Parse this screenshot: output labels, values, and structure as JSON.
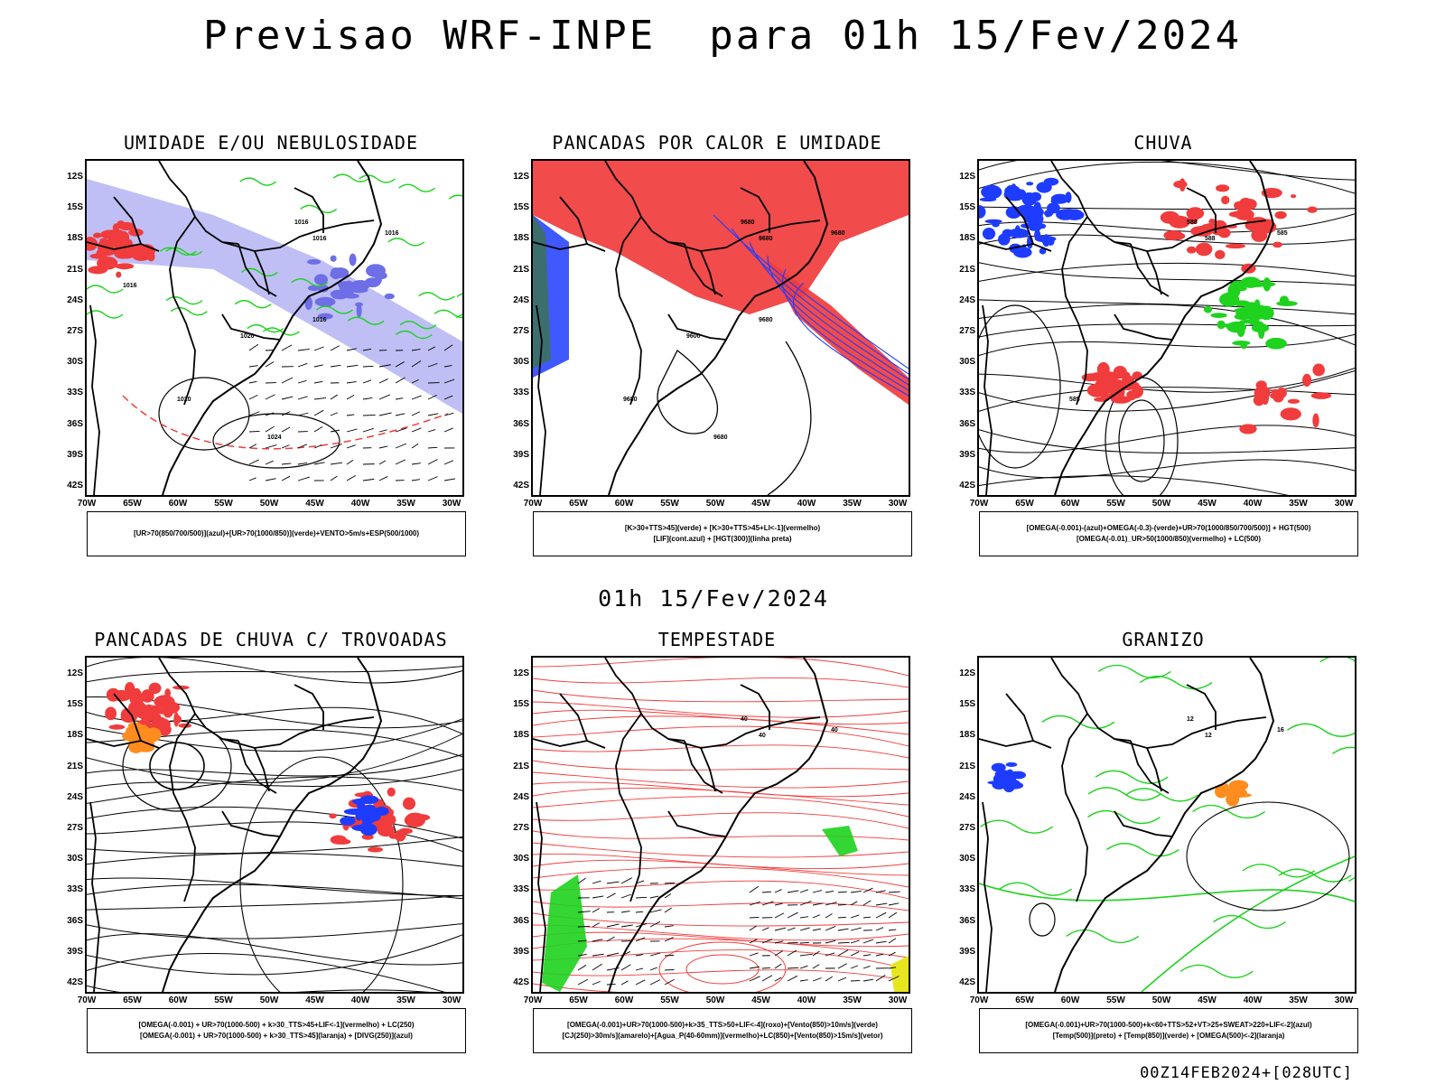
{
  "header": {
    "title": "Previsao WRF-INPE  para 01h 15/Fev/2024",
    "mid_time": "01h 15/Fev/2024",
    "footer": "00Z14FEB2024+[028UTC]"
  },
  "axes": {
    "lat_labels": [
      "12S",
      "15S",
      "18S",
      "21S",
      "24S",
      "27S",
      "30S",
      "33S",
      "36S",
      "39S",
      "42S"
    ],
    "lon_labels": [
      "70W",
      "65W",
      "60W",
      "55W",
      "50W",
      "45W",
      "40W",
      "35W",
      "30W"
    ]
  },
  "colors": {
    "red": "#f03c3c",
    "blue": "#1e3cff",
    "green": "#1ed21e",
    "lavender": "#b4b4f5",
    "dark_teal": "#3c6e6e",
    "orange": "#ff8c1e",
    "black": "#000000"
  },
  "panels": [
    {
      "id": "umidade",
      "title": "UMIDADE E/OU NEBULOSIDADE",
      "legend": [
        "[UR>70(850/700/500)](azul)+[UR>70(1000/850)](verde)+VENTO>5m/s+ESP(500/1000)"
      ],
      "contour_labels": [
        "1016",
        "1016",
        "1016",
        "1020",
        "1024",
        "1016",
        "1020",
        "1016"
      ]
    },
    {
      "id": "pancadas-calor",
      "title": "PANCADAS POR CALOR E UMIDADE",
      "legend": [
        "[K>30+TTS>45](verde) + [K>30+TTS>45+LI<-1](vermelho)",
        "[LIF](cont.azul) + [HGT(300)](linha preta)"
      ],
      "contour_labels": [
        "9680",
        "9680",
        "9680",
        "9680",
        "9680",
        "9680",
        "9600"
      ]
    },
    {
      "id": "chuva",
      "title": "CHUVA",
      "legend": [
        "[OMEGA(-0.001)-(azul)+OMEGA(-0.3)-(verde)+UR>70(1000/850/700/500)] + HGT(500)",
        "[OMEGA(-0.01)_UR>50(1000/850)(vermelho) + LC(500)"
      ],
      "contour_labels": [
        "588",
        "588",
        "585",
        "585"
      ]
    },
    {
      "id": "pancadas-trovoadas",
      "title": "PANCADAS DE CHUVA C/ TROVOADAS",
      "legend": [
        "[OMEGA(-0.001) + UR>70(1000-500) + k>30_TTS>45+LIF<-1](vermelho) + LC(250)",
        "[OMEGA(-0.001) + UR>70(1000-500) + k>30_TTS>45](laranja) + [DIVG(250)](azul)"
      ],
      "contour_labels": []
    },
    {
      "id": "tempestade",
      "title": "TEMPESTADE",
      "legend": [
        "[OMEGA(-0.001)+UR>70(1000-500)+k>35_TTS>50+LIF<-4](roxo)+[Vento(850)>10m/s](verde)",
        "[CJ(250)>30m/s](amarelo)+[Agua_P(40-60mm)](vermelho)+LC(850)+[Vento(850)>15m/s](vetor)"
      ],
      "contour_labels": [
        "40",
        "40",
        "40"
      ]
    },
    {
      "id": "granizo",
      "title": "GRANIZO",
      "legend": [
        "[OMEGA(-0.001)+UR>70(1000-500)+k<60+TTS>52+VT>25+SWEAT>220+LIF<-2](azul)",
        "[Temp(500)](preto) + [Temp(850)](verde) + [OMEGA(500)<-2](laranja)"
      ],
      "contour_labels": [
        "12",
        "12",
        "16"
      ]
    }
  ]
}
